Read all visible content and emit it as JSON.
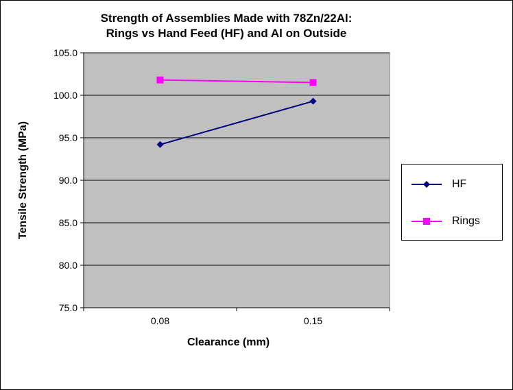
{
  "chart_data": {
    "type": "line",
    "title": [
      "Strength of Assemblies Made with 78Zn/22Al:",
      "Rings vs Hand Feed (HF)  and Al on  Outside"
    ],
    "xlabel": "Clearance (mm)",
    "ylabel": "Tensile Strength (MPa)",
    "categories": [
      "0.08",
      "0.15"
    ],
    "ylim": [
      75.0,
      105.0
    ],
    "yticks": [
      "75.0",
      "80.0",
      "85.0",
      "90.0",
      "95.0",
      "100.0",
      "105.0"
    ],
    "ytick_values": [
      75,
      80,
      85,
      90,
      95,
      100,
      105
    ],
    "grid": "horizontal",
    "plot_background": "#C0C0C0",
    "legend_position": "right",
    "series": [
      {
        "name": "HF",
        "values": [
          94.2,
          99.3
        ],
        "color": "#000080",
        "marker": "diamond"
      },
      {
        "name": "Rings",
        "values": [
          101.8,
          101.5
        ],
        "color": "#FF00FF",
        "marker": "square"
      }
    ]
  }
}
